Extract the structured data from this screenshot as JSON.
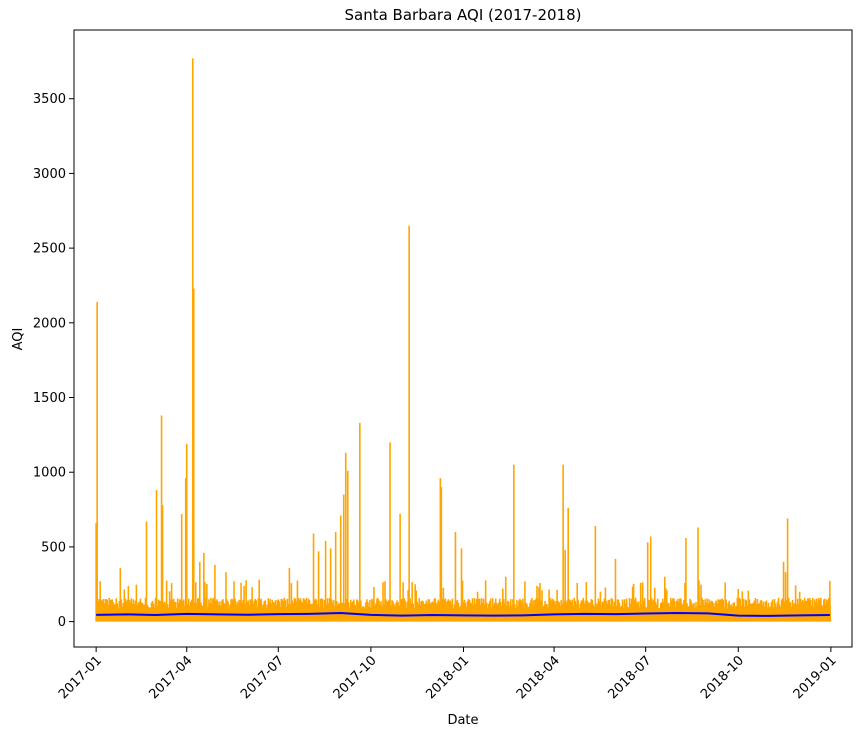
{
  "chart_data": {
    "type": "line",
    "title": "Santa Barbara AQI (2017-2018)",
    "xlabel": "Date",
    "ylabel": "AQI",
    "xlim": [
      "2016-12-10",
      "2019-01-22"
    ],
    "ylim": [
      -170,
      3960
    ],
    "grid": false,
    "legend": "none",
    "x_ticks": [
      "2017-01",
      "2017-04",
      "2017-07",
      "2017-10",
      "2018-01",
      "2018-04",
      "2018-07",
      "2018-10",
      "2019-01"
    ],
    "y_ticks": [
      0,
      500,
      1000,
      1500,
      2000,
      2500,
      3000,
      3500
    ],
    "series": [
      {
        "color": "#ffa500",
        "style": "dense daily range",
        "x_start": "2017-01-01",
        "x_end": "2018-12-31",
        "baseline_low": 0,
        "baseline_high": 160,
        "peaks": [
          [
            "2017-01-01",
            660
          ],
          [
            "2017-01-02",
            2140
          ],
          [
            "2017-01-05",
            270
          ],
          [
            "2017-01-25",
            360
          ],
          [
            "2017-02-20",
            670
          ],
          [
            "2017-03-02",
            880
          ],
          [
            "2017-03-07",
            1380
          ],
          [
            "2017-03-08",
            780
          ],
          [
            "2017-03-27",
            720
          ],
          [
            "2017-03-31",
            960
          ],
          [
            "2017-04-01",
            1190
          ],
          [
            "2017-04-07",
            3770
          ],
          [
            "2017-04-08",
            2230
          ],
          [
            "2017-04-14",
            400
          ],
          [
            "2017-04-18",
            460
          ],
          [
            "2017-04-29",
            380
          ],
          [
            "2017-05-10",
            330
          ],
          [
            "2017-05-18",
            270
          ],
          [
            "2017-05-25",
            260
          ],
          [
            "2017-06-12",
            280
          ],
          [
            "2017-07-12",
            360
          ],
          [
            "2017-08-05",
            590
          ],
          [
            "2017-08-10",
            470
          ],
          [
            "2017-08-17",
            540
          ],
          [
            "2017-08-22",
            490
          ],
          [
            "2017-08-27",
            600
          ],
          [
            "2017-09-01",
            710
          ],
          [
            "2017-09-04",
            850
          ],
          [
            "2017-09-06",
            1130
          ],
          [
            "2017-09-08",
            1010
          ],
          [
            "2017-09-20",
            1330
          ],
          [
            "2017-10-15",
            270
          ],
          [
            "2017-10-20",
            1200
          ],
          [
            "2017-10-30",
            720
          ],
          [
            "2017-11-08",
            2650
          ],
          [
            "2017-12-09",
            960
          ],
          [
            "2017-12-10",
            900
          ],
          [
            "2017-12-24",
            600
          ],
          [
            "2017-12-30",
            490
          ],
          [
            "2018-01-15",
            200
          ],
          [
            "2018-02-12",
            300
          ],
          [
            "2018-02-20",
            1050
          ],
          [
            "2018-03-15",
            240
          ],
          [
            "2018-04-10",
            1050
          ],
          [
            "2018-04-12",
            480
          ],
          [
            "2018-04-15",
            760
          ],
          [
            "2018-05-12",
            640
          ],
          [
            "2018-06-01",
            420
          ],
          [
            "2018-07-03",
            530
          ],
          [
            "2018-07-06",
            570
          ],
          [
            "2018-07-20",
            300
          ],
          [
            "2018-08-10",
            560
          ],
          [
            "2018-08-22",
            630
          ],
          [
            "2018-11-15",
            400
          ],
          [
            "2018-11-17",
            330
          ],
          [
            "2018-11-19",
            690
          ],
          [
            "2018-12-01",
            200
          ]
        ]
      },
      {
        "color": "#0000ff",
        "style": "smoothed mean",
        "x": [
          "2017-01-01",
          "2017-02-01",
          "2017-03-01",
          "2017-04-01",
          "2017-05-01",
          "2017-06-01",
          "2017-07-01",
          "2017-08-01",
          "2017-09-01",
          "2017-10-01",
          "2017-11-01",
          "2017-12-01",
          "2018-01-01",
          "2018-02-01",
          "2018-03-01",
          "2018-04-01",
          "2018-05-01",
          "2018-06-01",
          "2018-07-01",
          "2018-08-01",
          "2018-09-01",
          "2018-10-01",
          "2018-11-01",
          "2018-12-01",
          "2018-12-31"
        ],
        "values": [
          45,
          48,
          44,
          52,
          48,
          46,
          50,
          52,
          58,
          45,
          40,
          44,
          42,
          40,
          42,
          48,
          52,
          50,
          54,
          58,
          55,
          40,
          38,
          42,
          44
        ]
      }
    ]
  }
}
